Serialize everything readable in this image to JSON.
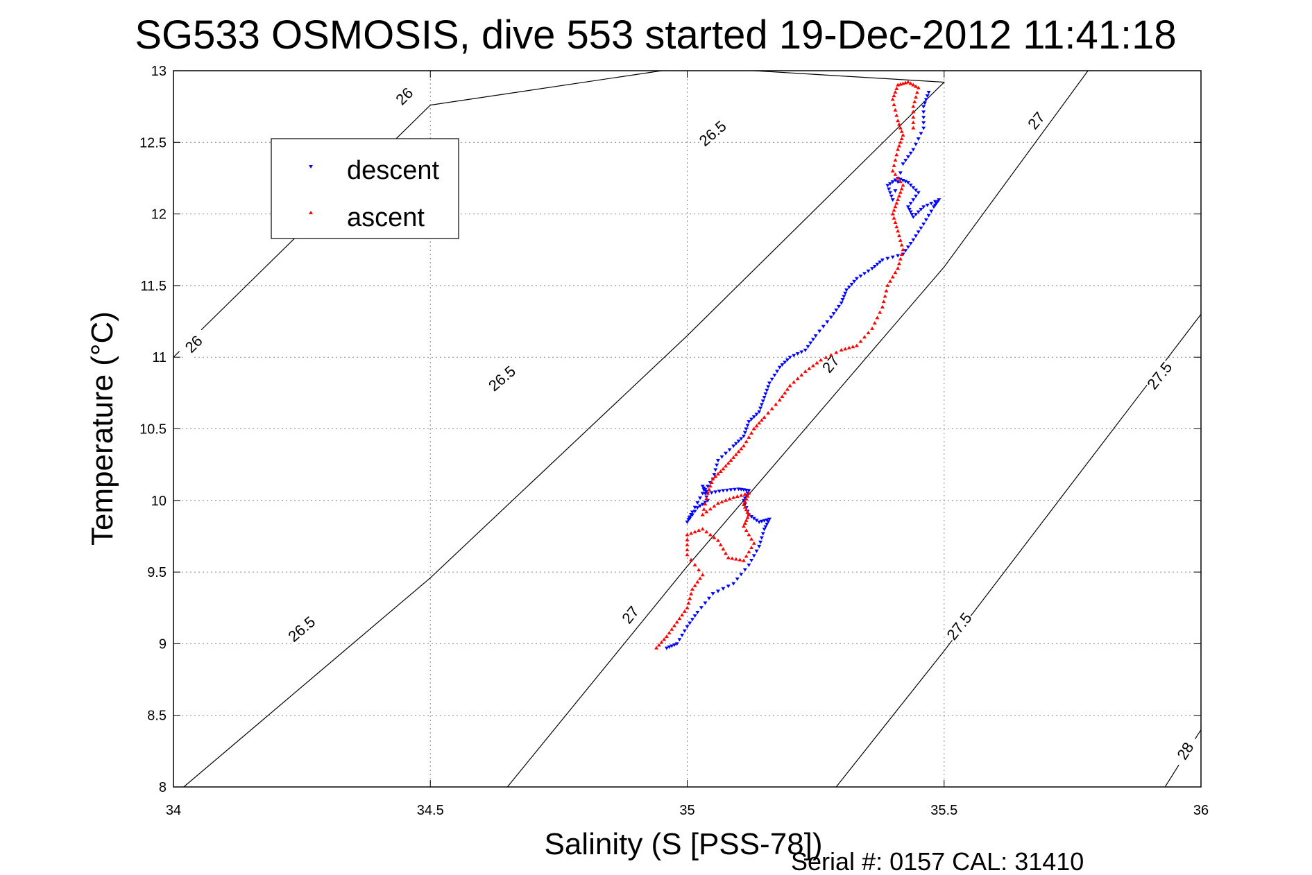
{
  "chart_data": {
    "type": "scatter",
    "title": "SG533 OSMOSIS, dive 553 started 19-Dec-2012 11:41:18",
    "xlabel": "Salinity (S [PSS-78])",
    "ylabel": "Temperature (°C)",
    "xlim": [
      34,
      36
    ],
    "ylim": [
      8,
      13
    ],
    "xticks": [
      "34",
      "34.5",
      "35",
      "35.5",
      "36"
    ],
    "yticks": [
      "8",
      "8.5",
      "9",
      "9.5",
      "10",
      "10.5",
      "11",
      "11.5",
      "12",
      "12.5",
      "13"
    ],
    "grid": true,
    "legend_position": "top-left",
    "footer": "Serial #: 0157  CAL: 31410",
    "density_contours": [
      {
        "label": "26",
        "points": [
          [
            34.0,
            11.0
          ],
          [
            34.5,
            12.76
          ],
          [
            34.95,
            13.0
          ]
        ],
        "label_at": [
          [
            34.04,
            11.09
          ],
          [
            34.45,
            12.82
          ]
        ]
      },
      {
        "label": "26.5",
        "points": [
          [
            34.02,
            8.0
          ],
          [
            34.5,
            9.46
          ],
          [
            35.0,
            11.15
          ],
          [
            35.5,
            12.92
          ],
          [
            35.13,
            13.0
          ]
        ],
        "label_at": [
          [
            34.25,
            9.1
          ],
          [
            34.64,
            10.85
          ],
          [
            35.05,
            12.56
          ]
        ]
      },
      {
        "label": "27",
        "points": [
          [
            34.65,
            8.0
          ],
          [
            35.0,
            9.54
          ],
          [
            35.5,
            11.63
          ],
          [
            35.78,
            13.0
          ]
        ],
        "label_at": [
          [
            34.89,
            9.2
          ],
          [
            35.28,
            10.95
          ],
          [
            35.68,
            12.65
          ]
        ]
      },
      {
        "label": "27.5",
        "points": [
          [
            35.29,
            8.0
          ],
          [
            35.5,
            8.95
          ],
          [
            36.0,
            11.3
          ]
        ],
        "label_at": [
          [
            35.53,
            9.12
          ],
          [
            35.92,
            10.87
          ]
        ]
      },
      {
        "label": "28",
        "points": [
          [
            35.93,
            8.0
          ],
          [
            36.0,
            8.4
          ]
        ],
        "label_at": [
          [
            35.97,
            8.25
          ]
        ]
      }
    ],
    "series": [
      {
        "name": "descent",
        "color": "#0000ff",
        "marker": "triangle-down",
        "points": [
          [
            34.96,
            8.97
          ],
          [
            34.98,
            9.0
          ],
          [
            35.0,
            9.12
          ],
          [
            35.02,
            9.22
          ],
          [
            35.05,
            9.35
          ],
          [
            35.09,
            9.42
          ],
          [
            35.12,
            9.55
          ],
          [
            35.14,
            9.68
          ],
          [
            35.15,
            9.8
          ],
          [
            35.16,
            9.87
          ],
          [
            35.14,
            9.85
          ],
          [
            35.12,
            9.9
          ],
          [
            35.11,
            10.0
          ],
          [
            35.12,
            10.07
          ],
          [
            35.1,
            10.08
          ],
          [
            35.07,
            10.07
          ],
          [
            35.04,
            10.05
          ],
          [
            35.03,
            10.1
          ],
          [
            35.04,
            10.0
          ],
          [
            35.02,
            9.95
          ],
          [
            35.0,
            9.85
          ],
          [
            35.01,
            9.92
          ],
          [
            35.03,
            10.05
          ],
          [
            35.05,
            10.15
          ],
          [
            35.06,
            10.28
          ],
          [
            35.09,
            10.38
          ],
          [
            35.11,
            10.45
          ],
          [
            35.12,
            10.55
          ],
          [
            35.14,
            10.62
          ],
          [
            35.15,
            10.72
          ],
          [
            35.16,
            10.82
          ],
          [
            35.18,
            10.93
          ],
          [
            35.2,
            11.0
          ],
          [
            35.23,
            11.05
          ],
          [
            35.25,
            11.15
          ],
          [
            35.28,
            11.28
          ],
          [
            35.3,
            11.38
          ],
          [
            35.31,
            11.47
          ],
          [
            35.33,
            11.55
          ],
          [
            35.36,
            11.62
          ],
          [
            35.38,
            11.68
          ],
          [
            35.42,
            11.72
          ],
          [
            35.44,
            11.82
          ],
          [
            35.46,
            11.93
          ],
          [
            35.48,
            12.05
          ],
          [
            35.49,
            12.1
          ],
          [
            35.46,
            12.05
          ],
          [
            35.44,
            11.98
          ],
          [
            35.43,
            12.05
          ],
          [
            35.45,
            12.15
          ],
          [
            35.43,
            12.22
          ],
          [
            35.41,
            12.25
          ],
          [
            35.39,
            12.2
          ],
          [
            35.4,
            12.1
          ],
          [
            35.42,
            12.35
          ],
          [
            35.44,
            12.45
          ],
          [
            35.46,
            12.6
          ],
          [
            35.46,
            12.75
          ],
          [
            35.47,
            12.85
          ]
        ]
      },
      {
        "name": "ascent",
        "color": "#ff0000",
        "marker": "triangle-up",
        "points": [
          [
            34.94,
            8.97
          ],
          [
            34.96,
            9.05
          ],
          [
            34.98,
            9.15
          ],
          [
            35.0,
            9.25
          ],
          [
            35.01,
            9.38
          ],
          [
            35.03,
            9.48
          ],
          [
            35.0,
            9.62
          ],
          [
            35.0,
            9.76
          ],
          [
            35.03,
            9.8
          ],
          [
            35.06,
            9.72
          ],
          [
            35.08,
            9.6
          ],
          [
            35.11,
            9.58
          ],
          [
            35.13,
            9.7
          ],
          [
            35.11,
            9.82
          ],
          [
            35.12,
            9.9
          ],
          [
            35.11,
            9.97
          ],
          [
            35.12,
            10.05
          ],
          [
            35.09,
            10.02
          ],
          [
            35.06,
            9.98
          ],
          [
            35.03,
            9.9
          ],
          [
            35.04,
            10.05
          ],
          [
            35.05,
            10.15
          ],
          [
            35.07,
            10.22
          ],
          [
            35.09,
            10.3
          ],
          [
            35.11,
            10.38
          ],
          [
            35.13,
            10.5
          ],
          [
            35.15,
            10.58
          ],
          [
            35.18,
            10.7
          ],
          [
            35.2,
            10.8
          ],
          [
            35.23,
            10.9
          ],
          [
            35.26,
            10.98
          ],
          [
            35.3,
            11.05
          ],
          [
            35.33,
            11.08
          ],
          [
            35.36,
            11.2
          ],
          [
            35.38,
            11.35
          ],
          [
            35.39,
            11.5
          ],
          [
            35.41,
            11.62
          ],
          [
            35.42,
            11.75
          ],
          [
            35.41,
            11.88
          ],
          [
            35.4,
            12.0
          ],
          [
            35.41,
            12.1
          ],
          [
            35.42,
            12.2
          ],
          [
            35.4,
            12.3
          ],
          [
            35.41,
            12.45
          ],
          [
            35.42,
            12.55
          ],
          [
            35.41,
            12.65
          ],
          [
            35.4,
            12.8
          ],
          [
            35.41,
            12.9
          ],
          [
            35.43,
            12.92
          ],
          [
            35.45,
            12.88
          ],
          [
            35.44,
            12.75
          ],
          [
            35.44,
            12.6
          ]
        ]
      }
    ]
  }
}
